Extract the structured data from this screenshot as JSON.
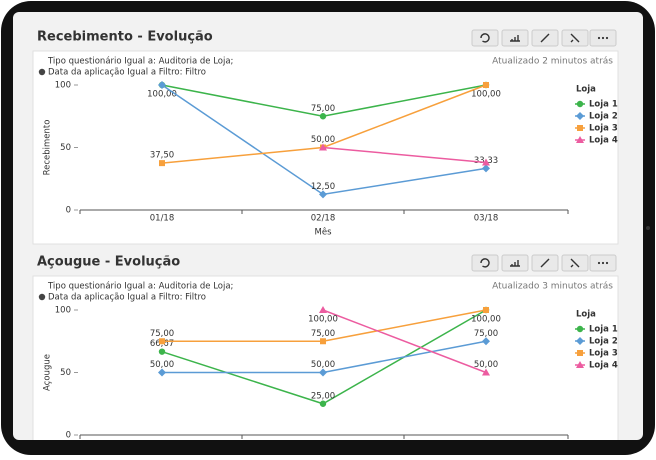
{
  "chart_data": [
    {
      "type": "line",
      "title": "Recebimento - Evolução",
      "filters": [
        "Tipo questionário Igual a: Auditoria de Loja;",
        "Data da aplicação Igual a Filtro: Filtro"
      ],
      "updated": "Atualizado 2 minutos atrás",
      "x_label": "Mês",
      "y_label": "Recebimento",
      "categories": [
        "01/18",
        "02/18",
        "03/18"
      ],
      "ylim": [
        0,
        100
      ],
      "yticks": [
        0,
        50,
        100
      ],
      "legend_title": "Loja",
      "legend": "right",
      "series": [
        {
          "name": "Loja 1",
          "color": "#3cb44b",
          "marker": "circle",
          "values": [
            100,
            75,
            100
          ],
          "value_labels": [
            "100,00",
            "75,00",
            "100,00"
          ]
        },
        {
          "name": "Loja 2",
          "color": "#5b9bd5",
          "marker": "diamond",
          "values": [
            100,
            12.5,
            33.33
          ],
          "value_labels": [
            null,
            "12,50",
            "33,33"
          ]
        },
        {
          "name": "Loja 3",
          "color": "#f7a03c",
          "marker": "square",
          "values": [
            37.5,
            50,
            100
          ],
          "value_labels": [
            "37,50",
            "50,00",
            null
          ]
        },
        {
          "name": "Loja 4",
          "color": "#ec5ca0",
          "marker": "triangle",
          "values": [
            null,
            50,
            38
          ],
          "value_labels": [
            null,
            null,
            null
          ]
        }
      ]
    },
    {
      "type": "line",
      "title": "Açougue - Evolução",
      "filters": [
        "Tipo questionário Igual a: Auditoria de Loja;",
        "Data da aplicação Igual a Filtro: Filtro"
      ],
      "updated": "Atualizado 3 minutos atrás",
      "y_label": "Açougue",
      "categories": [
        null,
        null,
        null
      ],
      "ylim": [
        0,
        100
      ],
      "yticks": [
        0,
        50,
        100
      ],
      "legend_title": "Loja",
      "legend": "right",
      "series": [
        {
          "name": "Loja 1",
          "color": "#3cb44b",
          "marker": "circle",
          "values": [
            66.67,
            25,
            100
          ],
          "value_labels": [
            "66,67",
            "25,00",
            null
          ]
        },
        {
          "name": "Loja 2",
          "color": "#5b9bd5",
          "marker": "diamond",
          "values": [
            50,
            50,
            75
          ],
          "value_labels": [
            "50,00",
            "50,00",
            "75,00"
          ]
        },
        {
          "name": "Loja 3",
          "color": "#f7a03c",
          "marker": "square",
          "values": [
            75,
            75,
            100
          ],
          "value_labels": [
            "75,00",
            "75,00",
            "100,00"
          ]
        },
        {
          "name": "Loja 4",
          "color": "#ec5ca0",
          "marker": "triangle",
          "values": [
            null,
            100,
            50
          ],
          "value_labels": [
            null,
            "100,00",
            "50,00"
          ]
        }
      ]
    }
  ]
}
